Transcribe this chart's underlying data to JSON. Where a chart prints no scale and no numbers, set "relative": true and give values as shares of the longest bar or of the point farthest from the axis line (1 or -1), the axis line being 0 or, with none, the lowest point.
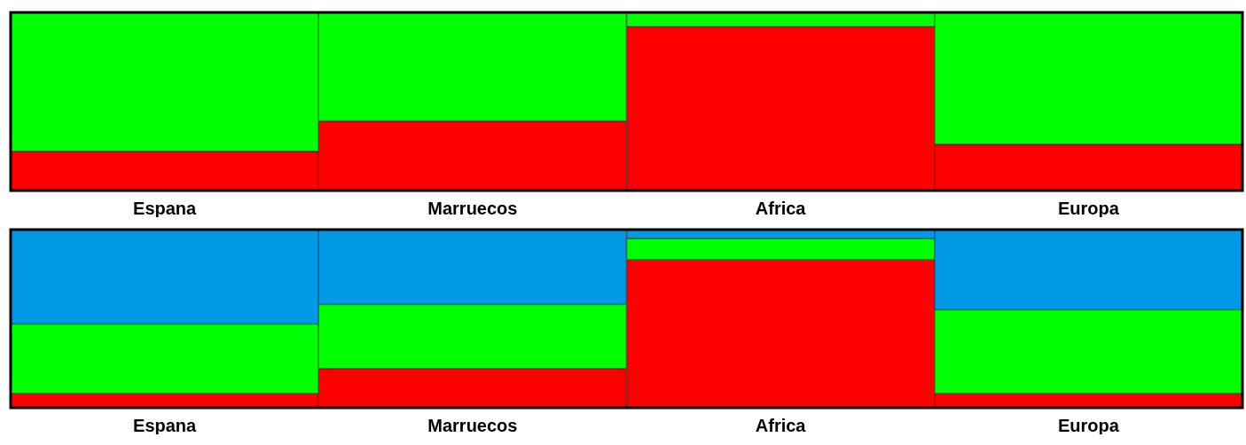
{
  "chart_data": [
    {
      "type": "bar",
      "stacked": true,
      "relative": true,
      "categories": [
        "Espana",
        "Marruecos",
        "Africa",
        "Europa"
      ],
      "series": [
        {
          "color": "#ff0000",
          "values": [
            0.22,
            0.39,
            0.92,
            0.26
          ]
        },
        {
          "color": "#00ff00",
          "values": [
            0.78,
            0.61,
            0.08,
            0.74
          ]
        }
      ]
    },
    {
      "type": "bar",
      "stacked": true,
      "relative": true,
      "categories": [
        "Espana",
        "Marruecos",
        "Africa",
        "Europa"
      ],
      "series": [
        {
          "color": "#ff0000",
          "values": [
            0.08,
            0.22,
            0.83,
            0.08
          ]
        },
        {
          "color": "#00ff00",
          "values": [
            0.39,
            0.36,
            0.12,
            0.47
          ]
        },
        {
          "color": "#0099e6",
          "values": [
            0.53,
            0.42,
            0.05,
            0.45
          ]
        }
      ]
    }
  ]
}
